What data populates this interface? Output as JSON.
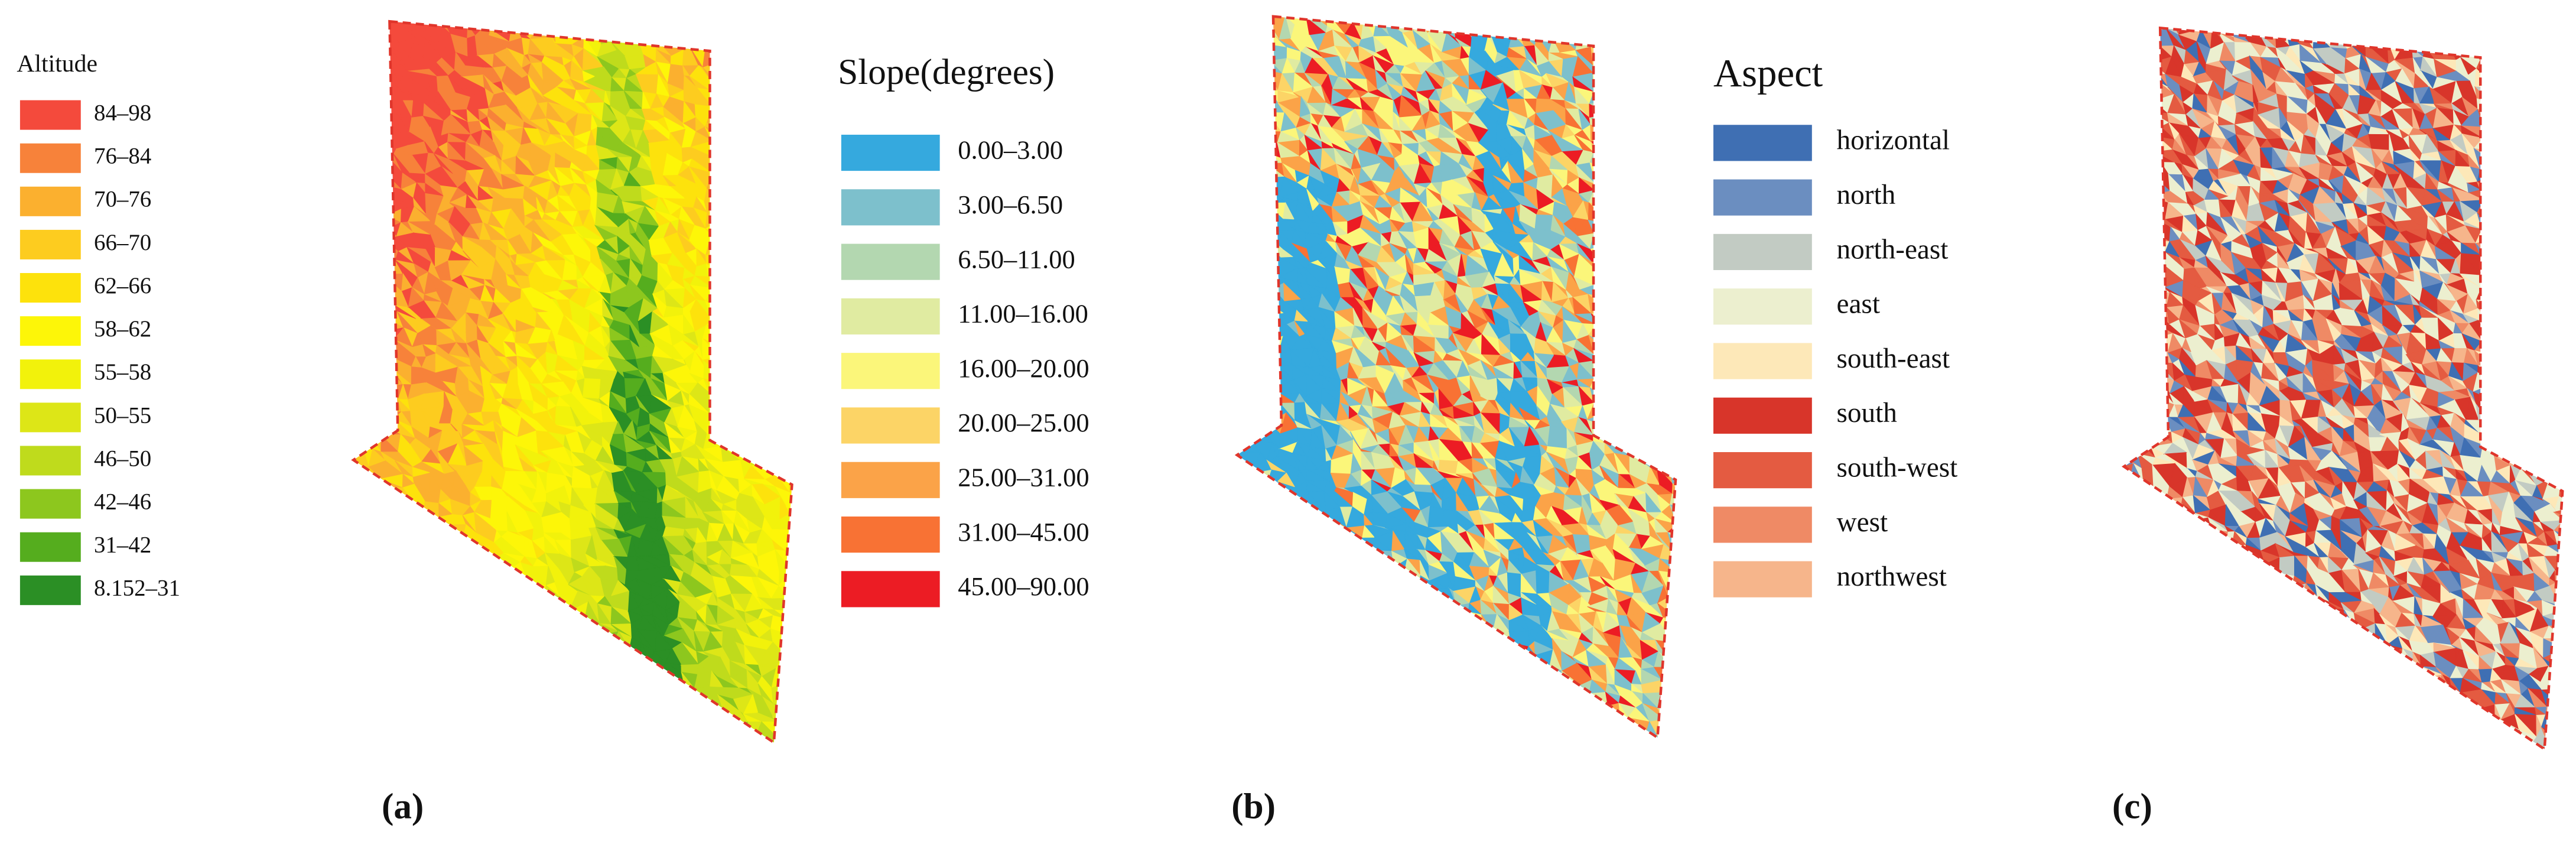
{
  "panels": [
    {
      "caption": "(a)",
      "legend": {
        "title": "Altitude",
        "items": [
          {
            "label": "84–98",
            "color": "#f44a3c"
          },
          {
            "label": "76–84",
            "color": "#f7823a"
          },
          {
            "label": "70–76",
            "color": "#fbb02f"
          },
          {
            "label": "66–70",
            "color": "#fdcc1f"
          },
          {
            "label": "62–66",
            "color": "#fde20c"
          },
          {
            "label": "58–62",
            "color": "#fdf608"
          },
          {
            "label": "55–58",
            "color": "#f2f20b"
          },
          {
            "label": "50–55",
            "color": "#dde617"
          },
          {
            "label": "46–50",
            "color": "#bfdb1c"
          },
          {
            "label": "42–46",
            "color": "#8dc71e"
          },
          {
            "label": "31–42",
            "color": "#55ad1e"
          },
          {
            "label": "8.152–31",
            "color": "#2b8f25"
          }
        ]
      }
    },
    {
      "caption": "(b)",
      "legend": {
        "title": "Slope(degrees)",
        "items": [
          {
            "label": "0.00–3.00",
            "color": "#35a9de"
          },
          {
            "label": "3.00–6.50",
            "color": "#7dc0cc"
          },
          {
            "label": "6.50–11.00",
            "color": "#b3d7b0"
          },
          {
            "label": "11.00–16.00",
            "color": "#e0eba1"
          },
          {
            "label": "16.00–20.00",
            "color": "#fbf67a"
          },
          {
            "label": "20.00–25.00",
            "color": "#fcd466"
          },
          {
            "label": "25.00–31.00",
            "color": "#fba348"
          },
          {
            "label": "31.00–45.00",
            "color": "#f87234"
          },
          {
            "label": "45.00–90.00",
            "color": "#ec1c24"
          }
        ]
      }
    },
    {
      "caption": "(c)",
      "legend": {
        "title": "Aspect",
        "items": [
          {
            "label": "horizontal",
            "color": "#3f6fb3"
          },
          {
            "label": "north",
            "color": "#6b8ec0"
          },
          {
            "label": "north-east",
            "color": "#c2cbc3"
          },
          {
            "label": "east",
            "color": "#ecefcf"
          },
          {
            "label": "south-east",
            "color": "#fde8b8"
          },
          {
            "label": "south",
            "color": "#d8352a"
          },
          {
            "label": "south-west",
            "color": "#e45b41"
          },
          {
            "label": "west",
            "color": "#ef8a65"
          },
          {
            "label": "northwest",
            "color": "#f6b58b"
          }
        ]
      }
    }
  ]
}
